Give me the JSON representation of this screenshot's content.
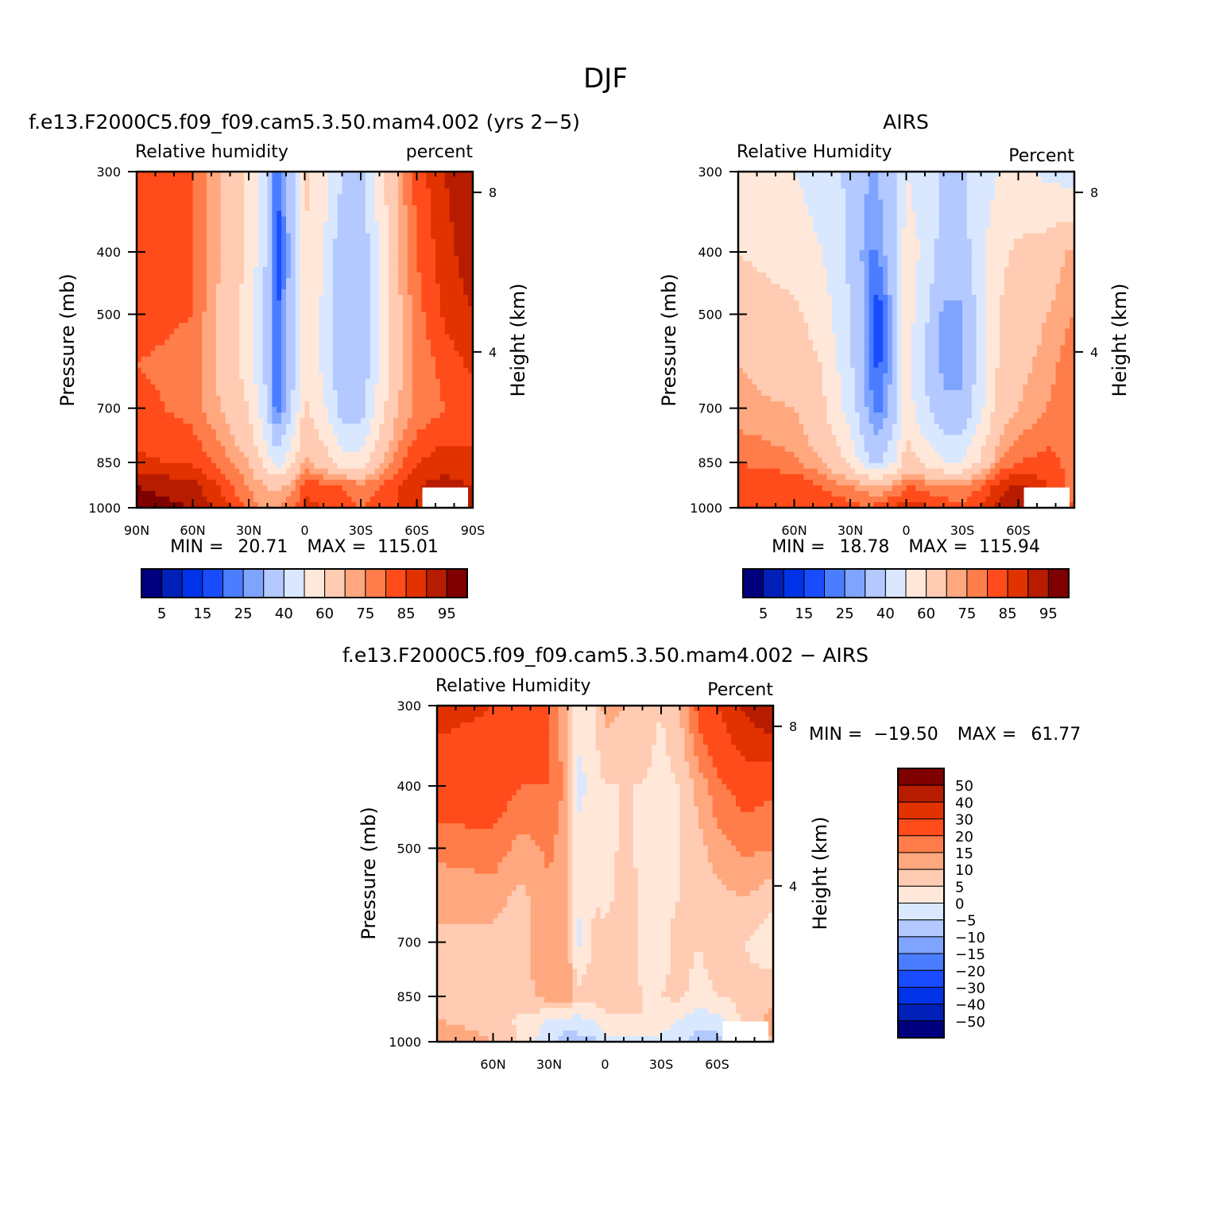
{
  "figure_title": "DJF",
  "colors": {
    "abs_scale": [
      "#00007f",
      "#0020b8",
      "#0033e8",
      "#1a4cff",
      "#4a7dff",
      "#7fa4ff",
      "#b3c9ff",
      "#d9e8ff",
      "#ffe8d9",
      "#ffcbb2",
      "#ffa87f",
      "#ff7d4a",
      "#ff4c1a",
      "#e13200",
      "#b81c00",
      "#7f0000"
    ],
    "diff_scale": [
      "#00007f",
      "#0020b8",
      "#0033e8",
      "#1a4cff",
      "#4a7dff",
      "#7fa4ff",
      "#b3c9ff",
      "#d9e8ff",
      "#ffe8d9",
      "#ffcbb2",
      "#ffa87f",
      "#ff7d4a",
      "#ff4c1a",
      "#e13200",
      "#b81c00",
      "#7f0000"
    ]
  },
  "chart_data": [
    {
      "type": "heatmap",
      "title": "f.e13.F2000C5.f09_f09.cam5.3.50.mam4.002 (yrs 2−5)",
      "left_label": "Relative humidity",
      "right_label": "percent",
      "ylabel": "Pressure (mb)",
      "y2label": "Height (km)",
      "x_ticks": [
        "90N",
        "60N",
        "30N",
        "0",
        "30S",
        "60S",
        "90S"
      ],
      "y_ticks": [
        "300",
        "400",
        "500",
        "700",
        "850",
        "1000"
      ],
      "y2_ticks": [
        "8",
        "4"
      ],
      "stats": {
        "min_label": "MIN =",
        "min": "20.71",
        "max_label": "MAX =",
        "max": "115.01"
      },
      "colorbar_labels": [
        "5",
        "15",
        "25",
        "40",
        "60",
        "75",
        "85",
        "95"
      ],
      "grid": {
        "pressure": [
          300,
          400,
          500,
          600,
          700,
          850,
          925,
          1000
        ],
        "lat": [
          90,
          60,
          45,
          30,
          20,
          15,
          5,
          0,
          -10,
          -20,
          -30,
          -40,
          -50,
          -60,
          -75,
          -90
        ],
        "values": [
          [
            85,
            80,
            70,
            58,
            40,
            20,
            40,
            62,
            55,
            40,
            38,
            55,
            72,
            82,
            90,
            95
          ],
          [
            84,
            80,
            70,
            58,
            38,
            14,
            38,
            60,
            50,
            32,
            32,
            50,
            70,
            80,
            88,
            93
          ],
          [
            82,
            80,
            68,
            56,
            36,
            18,
            40,
            58,
            48,
            32,
            32,
            50,
            68,
            78,
            86,
            90
          ],
          [
            80,
            78,
            68,
            56,
            36,
            18,
            40,
            58,
            48,
            32,
            32,
            50,
            68,
            76,
            82,
            86
          ],
          [
            82,
            78,
            70,
            60,
            40,
            20,
            45,
            62,
            52,
            35,
            35,
            55,
            70,
            76,
            80,
            82
          ],
          [
            86,
            84,
            78,
            70,
            55,
            45,
            60,
            72,
            65,
            55,
            55,
            68,
            78,
            85,
            88,
            86
          ],
          [
            95,
            92,
            84,
            75,
            70,
            68,
            75,
            84,
            82,
            80,
            78,
            80,
            85,
            90,
            92,
            90
          ],
          [
            98,
            95,
            88,
            78,
            72,
            75,
            80,
            86,
            85,
            82,
            80,
            82,
            85,
            88,
            90,
            90
          ]
        ]
      }
    },
    {
      "type": "heatmap",
      "title": "AIRS",
      "left_label": "Relative Humidity",
      "right_label": "Percent",
      "ylabel": "Pressure (mb)",
      "y2label": "Height (km)",
      "x_ticks": [
        "60N",
        "30N",
        "0",
        "30S",
        "60S"
      ],
      "y_ticks": [
        "300",
        "400",
        "500",
        "700",
        "850",
        "1000"
      ],
      "y2_ticks": [
        "8",
        "4"
      ],
      "stats": {
        "min_label": "MIN =",
        "min": "18.78",
        "max_label": "MAX =",
        "max": "115.94"
      },
      "colorbar_labels": [
        "5",
        "15",
        "25",
        "40",
        "60",
        "75",
        "85",
        "95"
      ],
      "grid": {
        "pressure": [
          300,
          400,
          500,
          600,
          700,
          850,
          925,
          1000
        ],
        "lat": [
          90,
          60,
          45,
          30,
          20,
          15,
          5,
          0,
          -10,
          -20,
          -30,
          -40,
          -50,
          -60,
          -75,
          -90
        ],
        "values": [
          [
            52,
            50,
            45,
            38,
            30,
            30,
            40,
            50,
            45,
            38,
            38,
            45,
            50,
            52,
            48,
            45
          ],
          [
            60,
            56,
            50,
            38,
            25,
            25,
            40,
            55,
            48,
            35,
            35,
            48,
            58,
            62,
            65,
            72
          ],
          [
            65,
            62,
            55,
            40,
            25,
            15,
            35,
            55,
            42,
            28,
            28,
            45,
            60,
            65,
            70,
            75
          ],
          [
            70,
            66,
            60,
            42,
            25,
            18,
            35,
            55,
            40,
            28,
            28,
            45,
            62,
            68,
            72,
            80
          ],
          [
            72,
            70,
            62,
            45,
            28,
            22,
            38,
            55,
            42,
            32,
            32,
            48,
            65,
            70,
            75,
            80
          ],
          [
            80,
            76,
            70,
            58,
            40,
            38,
            52,
            65,
            58,
            50,
            50,
            62,
            75,
            80,
            82,
            78
          ],
          [
            85,
            85,
            80,
            75,
            72,
            70,
            75,
            80,
            78,
            75,
            75,
            80,
            88,
            92,
            85,
            78
          ],
          [
            82,
            85,
            84,
            82,
            80,
            82,
            86,
            88,
            86,
            84,
            82,
            86,
            92,
            95,
            88,
            80
          ]
        ]
      }
    },
    {
      "type": "heatmap",
      "title": "f.e13.F2000C5.f09_f09.cam5.3.50.mam4.002 − AIRS",
      "left_label": "Relative Humidity",
      "right_label": "Percent",
      "ylabel": "Pressure (mb)",
      "y2label": "Height (km)",
      "x_ticks": [
        "60N",
        "30N",
        "0",
        "30S",
        "60S"
      ],
      "y_ticks": [
        "300",
        "400",
        "500",
        "700",
        "850",
        "1000"
      ],
      "y2_ticks": [
        "8",
        "4"
      ],
      "stats": {
        "min_label": "MIN =",
        "min": "−19.50",
        "max_label": "MAX =",
        "max": "61.77"
      },
      "colorbar_labels": [
        "50",
        "40",
        "30",
        "20",
        "15",
        "10",
        "5",
        "0",
        "−5",
        "−10",
        "−15",
        "−20",
        "−30",
        "−40",
        "−50"
      ],
      "grid": {
        "pressure": [
          300,
          400,
          500,
          600,
          700,
          850,
          925,
          1000
        ],
        "lat": [
          90,
          60,
          45,
          30,
          20,
          15,
          5,
          0,
          -10,
          -20,
          -30,
          -40,
          -50,
          -60,
          -75,
          -90
        ],
        "values": [
          [
            33,
            30,
            25,
            20,
            10,
            3,
            5,
            12,
            10,
            8,
            5,
            10,
            22,
            30,
            42,
            50
          ],
          [
            24,
            24,
            20,
            20,
            13,
            -3,
            3,
            5,
            5,
            5,
            3,
            5,
            12,
            18,
            23,
            21
          ],
          [
            17,
            18,
            13,
            16,
            11,
            3,
            5,
            3,
            6,
            4,
            4,
            5,
            8,
            13,
            16,
            15
          ],
          [
            10,
            12,
            8,
            14,
            11,
            0,
            5,
            3,
            8,
            4,
            4,
            5,
            6,
            8,
            10,
            6
          ],
          [
            10,
            8,
            8,
            15,
            12,
            -2,
            7,
            7,
            10,
            3,
            3,
            7,
            5,
            8,
            5,
            2
          ],
          [
            6,
            8,
            8,
            12,
            15,
            7,
            8,
            7,
            7,
            5,
            5,
            6,
            3,
            5,
            6,
            8
          ],
          [
            10,
            7,
            4,
            0,
            -2,
            -2,
            0,
            4,
            4,
            5,
            3,
            0,
            -3,
            -2,
            7,
            12
          ],
          [
            16,
            10,
            4,
            -4,
            -8,
            -7,
            -6,
            -2,
            -1,
            -2,
            -2,
            -4,
            -7,
            -7,
            2,
            10
          ]
        ]
      }
    }
  ]
}
